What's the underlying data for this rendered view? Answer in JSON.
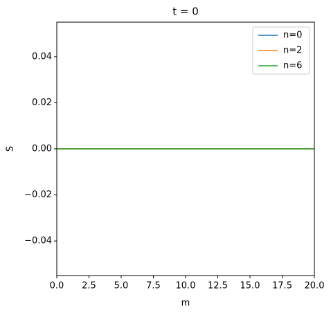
{
  "chart_data": {
    "type": "line",
    "title": "t = 0",
    "x_label": "m",
    "y_label": "S",
    "x": [
      0,
      20
    ],
    "series": [
      {
        "name": "n=0",
        "color": "#1f77b4",
        "values": [
          0,
          0
        ]
      },
      {
        "name": "n=2",
        "color": "#ff7f0e",
        "values": [
          0,
          0
        ]
      },
      {
        "name": "n=6",
        "color": "#2ca02c",
        "values": [
          0,
          0
        ]
      }
    ],
    "xlim": [
      0,
      20
    ],
    "xticks": [
      {
        "value": 0,
        "label": "0.0"
      },
      {
        "value": 2.5,
        "label": "2.5"
      },
      {
        "value": 5,
        "label": "5.0"
      },
      {
        "value": 7.5,
        "label": "7.5"
      },
      {
        "value": 10,
        "label": "10.0"
      },
      {
        "value": 12.5,
        "label": "12.5"
      },
      {
        "value": 15,
        "label": "15.0"
      },
      {
        "value": 17.5,
        "label": "17.5"
      },
      {
        "value": 20,
        "label": "20.0"
      }
    ],
    "ylim": [
      -0.055,
      0.055
    ],
    "yticks": [
      {
        "value": -0.04,
        "label": "−0.04"
      },
      {
        "value": -0.02,
        "label": "−0.02"
      },
      {
        "value": 0,
        "label": "0.00"
      },
      {
        "value": 0.02,
        "label": "0.02"
      },
      {
        "value": 0.04,
        "label": "0.04"
      }
    ],
    "grid": false,
    "legend": "upper right"
  }
}
